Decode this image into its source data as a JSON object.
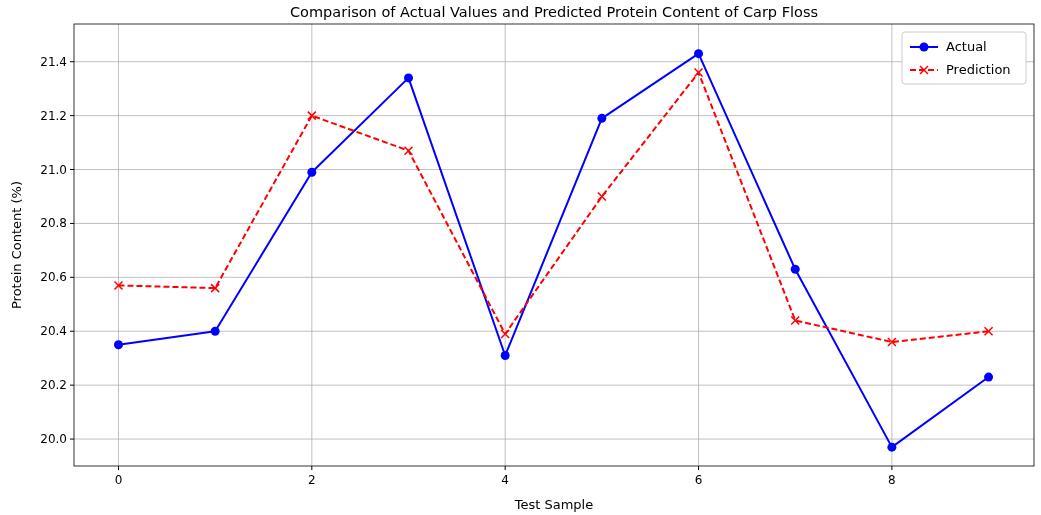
{
  "chart_data": {
    "type": "line",
    "title": "Comparison of Actual Values and Predicted Protein Content of Carp Floss",
    "xlabel": "Test Sample",
    "ylabel": "Protein Content (%)",
    "x": [
      0,
      1,
      2,
      3,
      4,
      5,
      6,
      7,
      8,
      9
    ],
    "series": [
      {
        "name": "Actual",
        "color": "#0000ff",
        "marker": "circle",
        "line_style": "solid",
        "values": [
          20.35,
          20.4,
          20.99,
          21.34,
          20.31,
          21.19,
          21.43,
          20.63,
          19.97,
          20.23
        ]
      },
      {
        "name": "Prediction",
        "color": "#ff0000",
        "marker": "cross",
        "line_style": "dashed",
        "values": [
          20.57,
          20.56,
          21.2,
          21.07,
          20.39,
          20.9,
          21.36,
          20.44,
          20.36,
          20.4
        ]
      }
    ],
    "xlim": [
      -0.46,
      9.47
    ],
    "xticks": [
      0,
      2,
      4,
      6,
      8
    ],
    "ylim": [
      19.9,
      21.54
    ],
    "yticks": [
      {
        "value": 20,
        "label": "20.0"
      },
      {
        "value": 20.2,
        "label": "20.2"
      },
      {
        "value": 20.4,
        "label": "20.4"
      },
      {
        "value": 20.6,
        "label": "20.6"
      },
      {
        "value": 20.8,
        "label": "20.8"
      },
      {
        "value": 21,
        "label": "21.0"
      },
      {
        "value": 21.2,
        "label": "21.2"
      },
      {
        "value": 21.4,
        "label": "21.4"
      }
    ],
    "grid": true,
    "legend": "top right"
  }
}
